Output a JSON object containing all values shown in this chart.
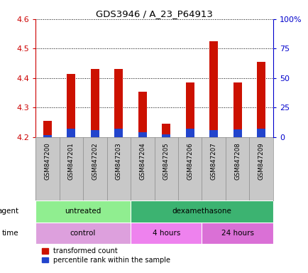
{
  "title": "GDS3946 / A_23_P64913",
  "samples": [
    "GSM847200",
    "GSM847201",
    "GSM847202",
    "GSM847203",
    "GSM847204",
    "GSM847205",
    "GSM847206",
    "GSM847207",
    "GSM847208",
    "GSM847209"
  ],
  "red_values": [
    4.255,
    4.415,
    4.43,
    4.43,
    4.355,
    4.245,
    4.385,
    4.525,
    4.385,
    4.455
  ],
  "blue_values": [
    2.0,
    7.0,
    6.0,
    7.0,
    4.0,
    2.5,
    7.0,
    6.0,
    6.5,
    7.0
  ],
  "baseline": 4.2,
  "ylim_left": [
    4.2,
    4.6
  ],
  "ylim_right": [
    0,
    100
  ],
  "yticks_left": [
    4.2,
    4.3,
    4.4,
    4.5,
    4.6
  ],
  "yticks_right": [
    0,
    25,
    50,
    75,
    100
  ],
  "ytick_labels_right": [
    "0",
    "25",
    "50",
    "75",
    "100%"
  ],
  "agent_groups": [
    {
      "label": "untreated",
      "start": 0,
      "end": 4,
      "color": "#90EE90"
    },
    {
      "label": "dexamethasone",
      "start": 4,
      "end": 10,
      "color": "#3CB371"
    }
  ],
  "time_groups": [
    {
      "label": "control",
      "start": 0,
      "end": 4,
      "color": "#DDA0DD"
    },
    {
      "label": "4 hours",
      "start": 4,
      "end": 7,
      "color": "#EE82EE"
    },
    {
      "label": "24 hours",
      "start": 7,
      "end": 10,
      "color": "#DA70D6"
    }
  ],
  "bar_width": 0.35,
  "red_color": "#CC1100",
  "blue_color": "#2244CC",
  "tick_color_left": "#CC0000",
  "tick_color_right": "#0000CC",
  "bg_color": "#FFFFFF",
  "label_bg_color": "#C8C8C8",
  "legend_red": "transformed count",
  "legend_blue": "percentile rank within the sample",
  "agent_label": "agent",
  "time_label": "time"
}
